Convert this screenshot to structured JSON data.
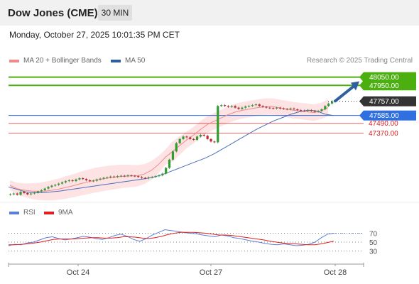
{
  "header": {
    "title": "Dow Jones (CME)",
    "timeframe": "30 MIN"
  },
  "datetime": "Monday, October 27, 2025 10:01:35 PM CET",
  "legend": {
    "items": [
      {
        "label": "MA 20 + Bollinger Bands",
        "color": "#f08a8a"
      },
      {
        "label": "MA 50",
        "color": "#2d5f9e"
      }
    ],
    "credit": "Research © 2025 Trading Central"
  },
  "rsi_legend": {
    "items": [
      {
        "label": "RSI",
        "color": "#5b7fd6"
      },
      {
        "label": "9MA",
        "color": "#e02020"
      }
    ]
  },
  "chart_data": {
    "type": "candlestick",
    "x_ticks": [
      "Oct 24",
      "Oct 27",
      "Oct 28"
    ],
    "ylim": [
      46550,
      48150
    ],
    "levels": [
      {
        "value": 48050,
        "label": "48050.00",
        "kind": "resistance",
        "color": "#4caf10",
        "label_bg": "#4caf10"
      },
      {
        "value": 47950,
        "label": "47950.00",
        "kind": "resistance",
        "color": "#4caf10",
        "label_bg": "#4caf10"
      },
      {
        "value": 47757,
        "label": "47757.00",
        "kind": "last",
        "color": "#333333",
        "label_bg": "#333333"
      },
      {
        "value": 47585,
        "label": "47585.00",
        "kind": "pivot",
        "color": "#2f6fe0",
        "label_bg": "#2f6fe0"
      },
      {
        "value": 47490,
        "label": "47490.00",
        "kind": "support",
        "color": "#e02020",
        "label_bg": null
      },
      {
        "value": 47370,
        "label": "47370.00",
        "kind": "support",
        "color": "#e02020",
        "label_bg": null
      }
    ],
    "arrow": {
      "from": 47760,
      "to": 47965
    },
    "candles_close": [
      46630,
      46640,
      46625,
      46660,
      46645,
      46630,
      46640,
      46650,
      46665,
      46680,
      46700,
      46720,
      46735,
      46745,
      46760,
      46775,
      46790,
      46800,
      46790,
      46810,
      46825,
      46815,
      46800,
      46790,
      46795,
      46810,
      46820,
      46830,
      46835,
      46845,
      46840,
      46850,
      46855,
      46850,
      46860,
      46855,
      46850,
      46840,
      46830,
      46825,
      46835,
      46840,
      46850,
      46860,
      46880,
      46950,
      47050,
      47150,
      47250,
      47300,
      47330,
      47320,
      47300,
      47290,
      47330,
      47350,
      47340,
      47300,
      47270,
      47260,
      47700,
      47710,
      47700,
      47690,
      47700,
      47680,
      47665,
      47680,
      47695,
      47700,
      47710,
      47720,
      47700,
      47690,
      47680,
      47675,
      47670,
      47680,
      47670,
      47665,
      47660,
      47670,
      47660,
      47650,
      47645,
      47640,
      47650,
      47640,
      47630,
      47640,
      47660,
      47700,
      47730,
      47757
    ],
    "ma20": [
      46740,
      46700,
      46680,
      46670,
      46665,
      46670,
      46680,
      46695,
      46715,
      46735,
      46760,
      46780,
      46800,
      46815,
      46830,
      46840,
      46848,
      46852,
      46855,
      46875,
      46920,
      46990,
      47080,
      47150,
      47220,
      47290,
      47350,
      47420,
      47480,
      47520,
      47560,
      47600,
      47630,
      47650,
      47665,
      47680,
      47690,
      47695,
      47680,
      47665,
      47650,
      47640,
      47630,
      47620,
      47640,
      47680
    ],
    "ma50": [
      46720,
      46690,
      46660,
      46650,
      46650,
      46660,
      46670,
      46685,
      46700,
      46715,
      46730,
      46745,
      46760,
      46775,
      46790,
      46805,
      46820,
      46840,
      46870,
      46910,
      46950,
      46990,
      47030,
      47070,
      47120,
      47180,
      47240,
      47300,
      47360,
      47420,
      47470,
      47520,
      47560,
      47600,
      47630,
      47650,
      47640,
      47600,
      47585
    ],
    "rsi": {
      "ylim": [
        0,
        100
      ],
      "levels": [
        70,
        50,
        30
      ],
      "rsi_values": [
        42,
        45,
        44,
        48,
        50,
        55,
        60,
        62,
        58,
        55,
        57,
        60,
        63,
        61,
        58,
        56,
        60,
        65,
        68,
        63,
        56,
        52,
        58,
        66,
        72,
        78,
        76,
        74,
        72,
        70,
        69,
        66,
        64,
        62,
        66,
        64,
        60,
        58,
        55,
        52,
        50,
        47,
        45,
        44,
        46,
        44,
        42,
        43,
        45,
        50,
        60,
        68,
        70
      ],
      "ma_values": [
        44,
        44,
        45,
        46,
        48,
        50,
        53,
        56,
        57,
        57,
        57,
        58,
        59,
        60,
        60,
        59,
        59,
        60,
        62,
        62,
        61,
        59,
        58,
        60,
        63,
        67,
        70,
        72,
        72,
        72,
        71,
        70,
        68,
        66,
        66,
        65,
        63,
        61,
        59,
        57,
        55,
        52,
        50,
        48,
        47,
        46,
        45,
        44,
        44,
        46,
        49,
        52
      ]
    }
  }
}
